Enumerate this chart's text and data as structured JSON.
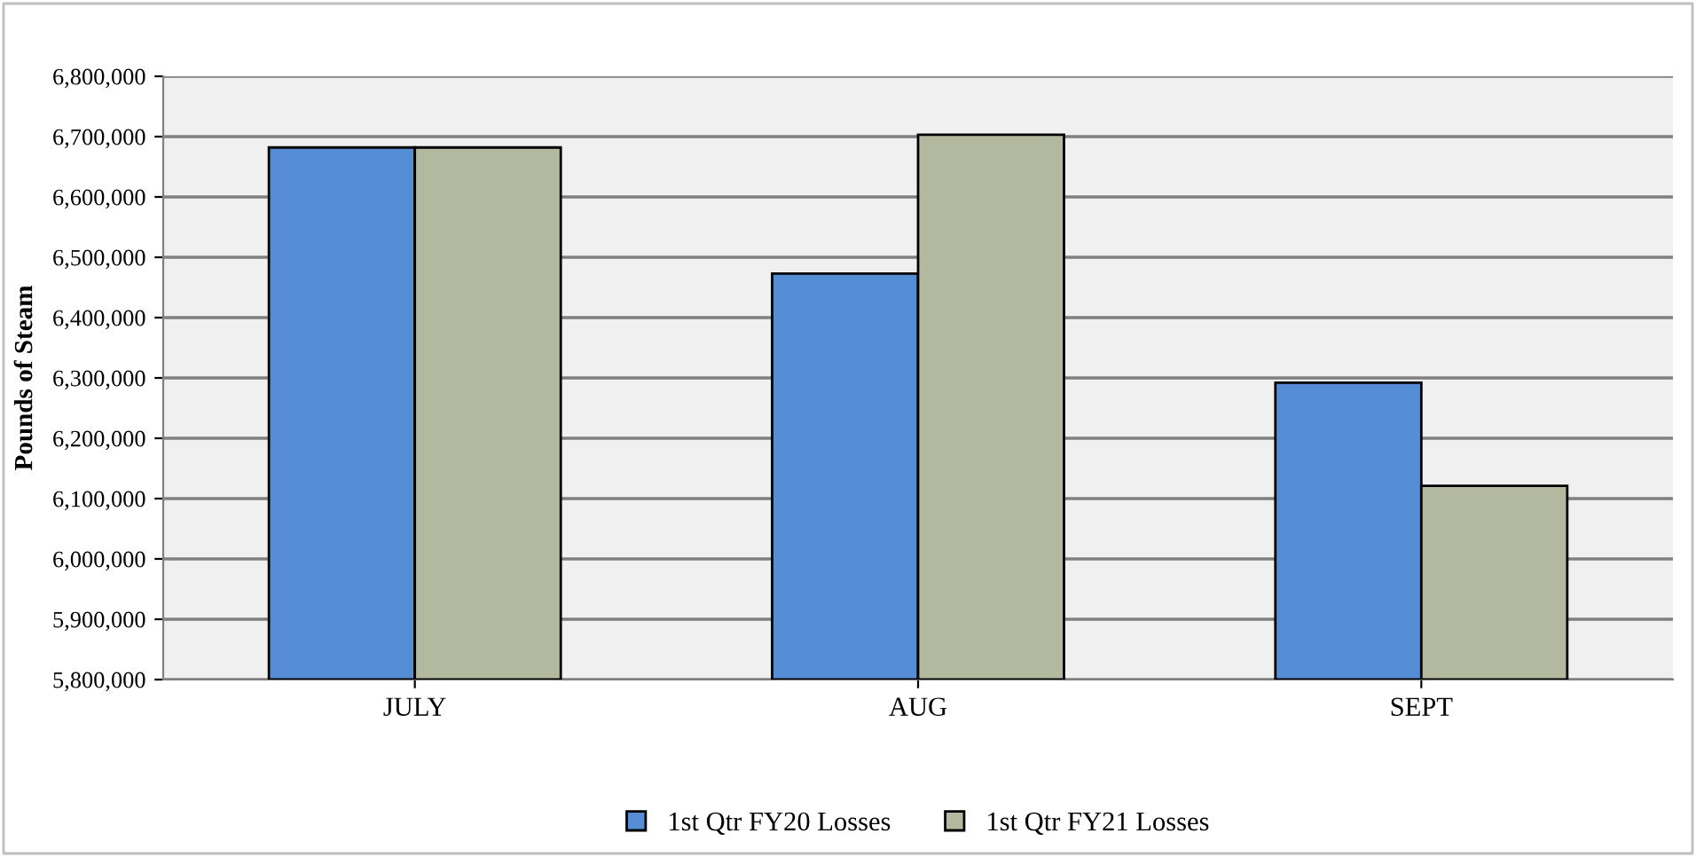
{
  "chart_data": {
    "type": "bar",
    "ylabel": "Pounds of Steam",
    "categories": [
      "JULY",
      "AUG",
      "SEPT"
    ],
    "series": [
      {
        "name": "1st Qtr FY20 Losses",
        "color": "#558ed5",
        "values": [
          6682000,
          6473000,
          6292000
        ]
      },
      {
        "name": "1st Qtr FY21 Losses",
        "color": "#b3b99f",
        "values": [
          6682000,
          6703000,
          6121000
        ]
      }
    ],
    "ylim": [
      5800000,
      6800000
    ],
    "yticks": [
      {
        "value": 5800000,
        "label": "5,800,000"
      },
      {
        "value": 5900000,
        "label": "5,900,000"
      },
      {
        "value": 6000000,
        "label": "6,000,000"
      },
      {
        "value": 6100000,
        "label": "6,100,000"
      },
      {
        "value": 6200000,
        "label": "6,200,000"
      },
      {
        "value": 6300000,
        "label": "6,300,000"
      },
      {
        "value": 6400000,
        "label": "6,400,000"
      },
      {
        "value": 6500000,
        "label": "6,500,000"
      },
      {
        "value": 6600000,
        "label": "6,600,000"
      },
      {
        "value": 6700000,
        "label": "6,700,000"
      },
      {
        "value": 6800000,
        "label": "6,800,000"
      }
    ],
    "grid": "y",
    "legend": "bottom"
  }
}
